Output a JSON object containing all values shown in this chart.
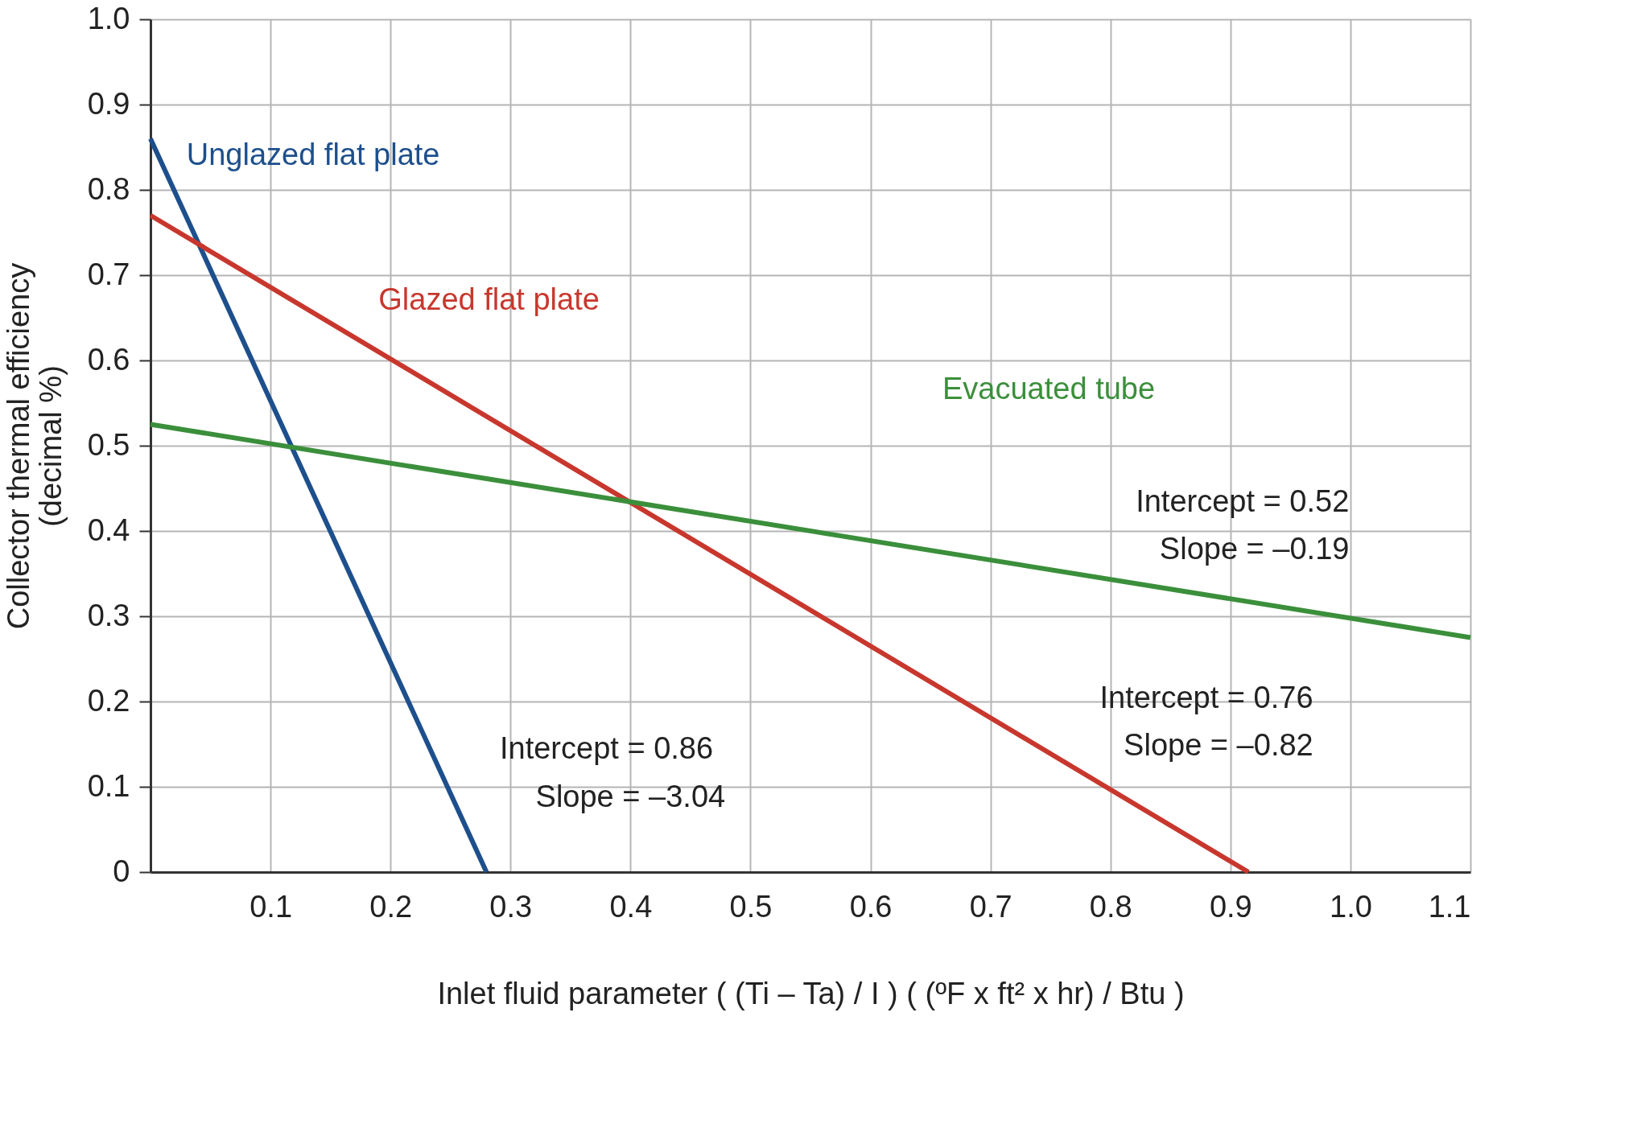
{
  "chart_data": {
    "type": "line",
    "xlabel": "Inlet fluid parameter   ( (Ti – Ta) / I )  ( (ºF x ft² x hr) / Btu )",
    "ylabel": "Collector thermal efficiency\n(decimal %)",
    "xlim": [
      0,
      1.1
    ],
    "ylim": [
      0,
      1.0
    ],
    "xticks": [
      0.1,
      0.2,
      0.3,
      0.4,
      0.5,
      0.6,
      0.7,
      0.8,
      0.9,
      {
        "value": 1,
        "label": "1.0"
      },
      1.1
    ],
    "yticks": [
      0,
      0.1,
      0.2,
      0.3,
      0.4,
      0.5,
      0.6,
      0.7,
      0.8,
      0.9,
      {
        "value": 1,
        "label": "1.0"
      }
    ],
    "grid": true,
    "legend": false,
    "marker": "none",
    "line_style": "solid",
    "series": [
      {
        "name": "Unglazed flat plate",
        "color": "#1d4f8c",
        "x": [
          0,
          0.28
        ],
        "values": [
          0.86,
          0
        ]
      },
      {
        "name": "Glazed flat plate",
        "color": "#c8372d",
        "x": [
          0,
          0.915
        ],
        "values": [
          0.77,
          0
        ]
      },
      {
        "name": "Evacuated tube",
        "color": "#3b8f3b",
        "x": [
          0,
          1.1
        ],
        "values": [
          0.525,
          0.275
        ]
      }
    ],
    "annotations": [
      "Intercept = 0.86",
      "Slope = –3.04",
      "Intercept = 0.76",
      "Slope = –0.82",
      "Intercept = 0.52",
      "Slope = –0.19"
    ]
  }
}
